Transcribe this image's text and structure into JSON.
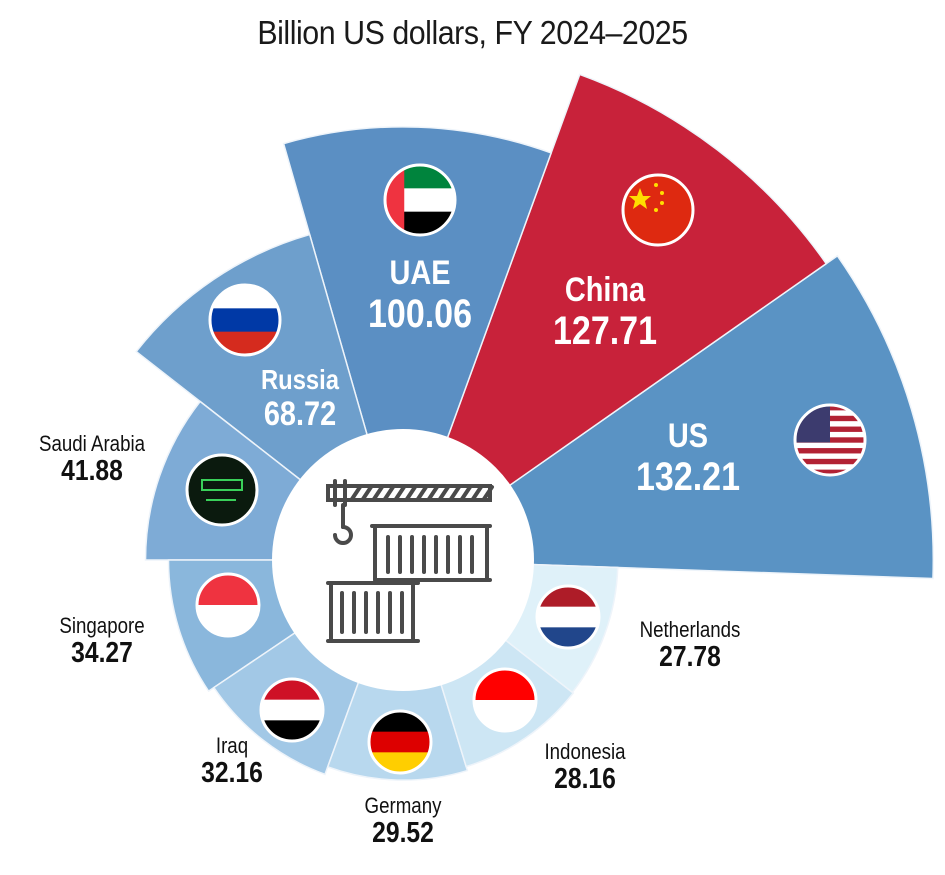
{
  "chart_data": {
    "type": "radial-bar",
    "title": "Billion US dollars, FY 2024–2025",
    "unit": "Billion US dollars",
    "categories": [
      "US",
      "China",
      "UAE",
      "Russia",
      "Saudi Arabia",
      "Singapore",
      "Iraq",
      "Germany",
      "Indonesia",
      "Netherlands"
    ],
    "values": [
      132.21,
      127.71,
      100.06,
      68.72,
      41.88,
      34.27,
      32.16,
      29.52,
      28.16,
      27.78
    ],
    "value_labels": [
      "132.21",
      "127.71",
      "100.06",
      "68.72",
      "41.88",
      "34.27",
      "32.16",
      "29.52",
      "28.16",
      "27.78"
    ],
    "colors": [
      "#5a93c4",
      "#c8223a",
      "#5b8fc3",
      "#6e9fcc",
      "#7eabd6",
      "#8ab7dc",
      "#a2c8e6",
      "#b8d8ee",
      "#cde6f4",
      "#dff1f9"
    ],
    "center_icon": "shipping-containers-crane-icon"
  }
}
